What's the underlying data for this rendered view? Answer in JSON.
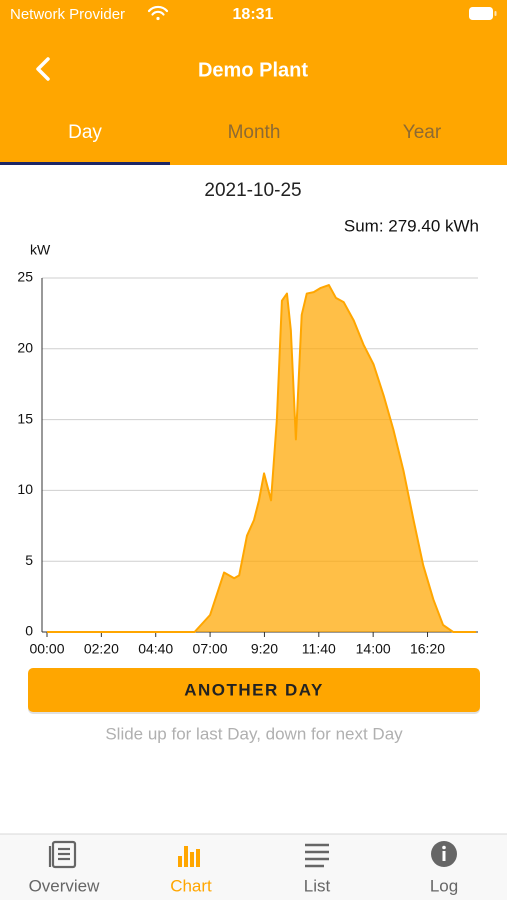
{
  "status_bar": {
    "carrier": "Network Provider",
    "time": "18:31"
  },
  "header": {
    "title": "Demo Plant"
  },
  "tabs": [
    "Day",
    "Month",
    "Year"
  ],
  "date": "2021-10-25",
  "sum": "Sum: 279.40 kWh",
  "chart_data": {
    "type": "area",
    "y_label": "kW",
    "color": "#FFA600",
    "grid": true,
    "x": [
      "00:00",
      "06:20",
      "07:00",
      "07:36",
      "08:02",
      "08:15",
      "08:35",
      "08:53",
      "09:06",
      "09:19",
      "09:37",
      "09:52",
      "10:05",
      "10:18",
      "10:28",
      "10:41",
      "10:56",
      "11:09",
      "11:27",
      "11:45",
      "12:06",
      "12:24",
      "12:44",
      "13:10",
      "13:35",
      "14:01",
      "14:27",
      "14:52",
      "15:18",
      "15:44",
      "16:09",
      "16:35",
      "17:00",
      "17:26",
      "18:25"
    ],
    "values": [
      0,
      0,
      1.2,
      4.2,
      3.8,
      4.0,
      6.8,
      7.9,
      9.3,
      11.2,
      9.3,
      15,
      23.4,
      23.9,
      21.3,
      13.6,
      22.4,
      23.9,
      24,
      24.3,
      24.5,
      23.6,
      23.3,
      22,
      20.3,
      18.9,
      16.7,
      14.3,
      11.4,
      7.9,
      4.7,
      2.3,
      0.5,
      0,
      0
    ],
    "xlim": [
      "00:00",
      "18:30"
    ],
    "xticks": [
      "00:00",
      "02:20",
      "04:40",
      "07:00",
      "9:20",
      "11:40",
      "14:00",
      "16:20"
    ],
    "ylim": [
      0,
      25
    ],
    "yticks": [
      0,
      5,
      10,
      15,
      20,
      25
    ]
  },
  "button": "ANOTHER DAY",
  "hint": "Slide up for last Day, down for next Day",
  "bottom_nav": [
    "Overview",
    "Chart",
    "List",
    "Log"
  ]
}
